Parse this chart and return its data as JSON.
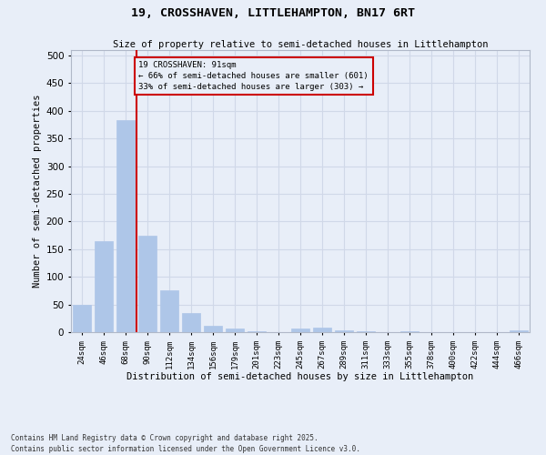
{
  "title": "19, CROSSHAVEN, LITTLEHAMPTON, BN17 6RT",
  "subtitle": "Size of property relative to semi-detached houses in Littlehampton",
  "xlabel": "Distribution of semi-detached houses by size in Littlehampton",
  "ylabel": "Number of semi-detached properties",
  "footer": "Contains HM Land Registry data © Crown copyright and database right 2025.\nContains public sector information licensed under the Open Government Licence v3.0.",
  "categories": [
    "24sqm",
    "46sqm",
    "68sqm",
    "90sqm",
    "112sqm",
    "134sqm",
    "156sqm",
    "179sqm",
    "201sqm",
    "223sqm",
    "245sqm",
    "267sqm",
    "289sqm",
    "311sqm",
    "333sqm",
    "355sqm",
    "378sqm",
    "400sqm",
    "422sqm",
    "444sqm",
    "466sqm"
  ],
  "values": [
    50,
    165,
    383,
    175,
    75,
    35,
    12,
    7,
    2,
    0,
    7,
    8,
    3,
    1,
    0,
    1,
    0,
    0,
    0,
    0,
    3
  ],
  "bar_color": "#aec6e8",
  "bar_edge_color": "#aec6e8",
  "grid_color": "#d0d8e8",
  "bg_color": "#e8eef8",
  "annotation_text": "19 CROSSHAVEN: 91sqm\n← 66% of semi-detached houses are smaller (601)\n33% of semi-detached houses are larger (303) →",
  "annotation_box_color": "#cc0000",
  "property_line_color": "#cc0000",
  "ylim": [
    0,
    510
  ],
  "yticks": [
    0,
    50,
    100,
    150,
    200,
    250,
    300,
    350,
    400,
    450,
    500
  ]
}
